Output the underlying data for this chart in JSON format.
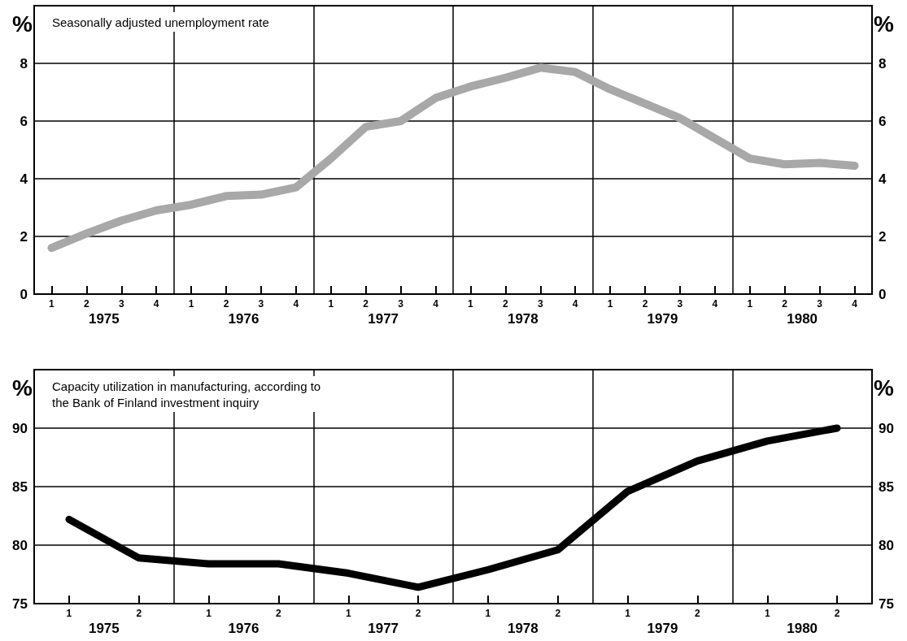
{
  "chart_data": [
    {
      "type": "line",
      "title": "Seasonally adjusted unemployment rate",
      "ylabel": "%",
      "y2label": "%",
      "categories": [
        "1",
        "2",
        "3",
        "4",
        "1",
        "2",
        "3",
        "4",
        "1",
        "2",
        "3",
        "4",
        "1",
        "2",
        "3",
        "4",
        "1",
        "2",
        "3",
        "4",
        "1",
        "2",
        "3",
        "4"
      ],
      "annotations": [
        "1975",
        "1976",
        "1977",
        "1978",
        "1979",
        "1980"
      ],
      "series": [
        {
          "color": "#a8a8a8",
          "values": [
            1.6,
            2.1,
            2.55,
            2.9,
            3.1,
            3.4,
            3.45,
            3.7,
            4.7,
            5.8,
            6.0,
            6.8,
            7.2,
            7.5,
            7.85,
            7.7,
            7.1,
            6.6,
            6.1,
            5.4,
            4.7,
            4.5,
            4.55,
            4.45
          ]
        }
      ],
      "ylim": [
        0,
        10
      ],
      "yticks": [
        0,
        2,
        4,
        6,
        8
      ],
      "y2lim": [
        0,
        10
      ],
      "y2ticks": [
        0,
        2,
        4,
        6,
        8
      ],
      "grid": true,
      "line_style": "solid"
    },
    {
      "type": "line",
      "title": "Capacity utilization in manufacturing, according to\nthe Bank of Finland investment inquiry",
      "ylabel": "%",
      "y2label": "%",
      "categories": [
        "1",
        "2",
        "1",
        "2",
        "1",
        "2",
        "1",
        "2",
        "1",
        "2",
        "1",
        "2"
      ],
      "annotations": [
        "1975",
        "1976",
        "1977",
        "1978",
        "1979",
        "1980"
      ],
      "series": [
        {
          "color": "#000000",
          "values": [
            82.2,
            78.9,
            78.4,
            78.4,
            77.6,
            76.4,
            77.9,
            79.6,
            84.6,
            87.2,
            88.9,
            90.0
          ]
        }
      ],
      "ylim": [
        75,
        95
      ],
      "yticks": [
        75,
        80,
        85,
        90
      ],
      "y2lim": [
        75,
        95
      ],
      "y2ticks": [
        75,
        80,
        85,
        90
      ],
      "grid": true,
      "line_style": "solid"
    }
  ]
}
